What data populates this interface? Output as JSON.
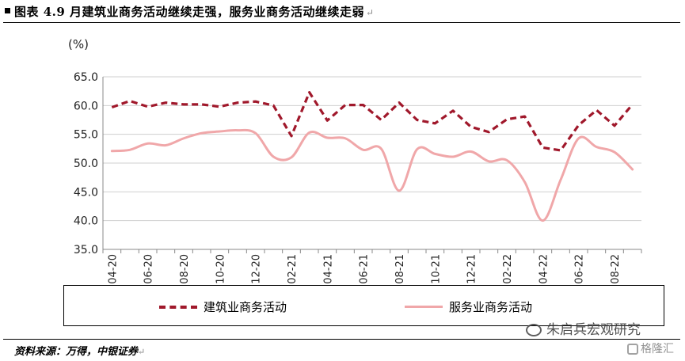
{
  "header": {
    "title": "图表 4.9 月建筑业商务活动继续走强，服务业商务活动继续走弱",
    "return_mark": "↵"
  },
  "unit": "(%)",
  "legend": {
    "construction": "建筑业商务活动",
    "services": "服务业商务活动"
  },
  "footer": {
    "source": "资料来源：万得，中银证券",
    "return_mark": "↵"
  },
  "watermarks": {
    "wechat": "朱启兵宏观研究",
    "gelonghui": "格隆汇"
  },
  "colors": {
    "construction": "#a0182b",
    "services": "#f0a7a9",
    "grid": "#cfcfcf",
    "axis": "#888888"
  },
  "icons": [
    "wechat-icon",
    "gelonghui-icon"
  ],
  "chart_data": {
    "type": "line",
    "months": [
      "04-20",
      "05-20",
      "06-20",
      "07-20",
      "08-20",
      "09-20",
      "10-20",
      "11-20",
      "12-20",
      "01-21",
      "02-21",
      "03-21",
      "04-21",
      "05-21",
      "06-21",
      "07-21",
      "08-21",
      "09-21",
      "10-21",
      "11-21",
      "12-21",
      "01-22",
      "02-22",
      "03-22",
      "04-22",
      "05-22",
      "06-22",
      "07-22",
      "08-22",
      "09-22"
    ],
    "tick_labels": [
      "04-20",
      "06-20",
      "08-20",
      "10-20",
      "12-20",
      "02-21",
      "04-21",
      "06-21",
      "08-21",
      "10-21",
      "12-21",
      "02-22",
      "04-22",
      "06-22",
      "08-22"
    ],
    "y_ticks": [
      "65.0",
      "60.0",
      "55.0",
      "50.0",
      "45.0",
      "40.0",
      "35.0"
    ],
    "ylim": [
      35,
      65
    ],
    "grid": true,
    "legend_position": "bottom",
    "series": [
      {
        "name": "建筑业商务活动",
        "style": "dashed",
        "values": [
          59.7,
          60.8,
          59.8,
          60.5,
          60.2,
          60.2,
          59.8,
          60.5,
          60.7,
          60.0,
          54.7,
          62.3,
          57.4,
          60.1,
          60.1,
          57.5,
          60.5,
          57.5,
          56.9,
          59.1,
          56.3,
          55.4,
          57.6,
          58.1,
          52.7,
          52.2,
          56.6,
          59.2,
          56.5,
          60.2
        ]
      },
      {
        "name": "服务业商务活动",
        "style": "solid",
        "values": [
          52.1,
          52.3,
          53.4,
          53.1,
          54.3,
          55.2,
          55.5,
          55.7,
          55.2,
          51.1,
          51.0,
          55.3,
          54.4,
          54.3,
          52.3,
          52.5,
          45.2,
          52.4,
          51.6,
          51.1,
          52.0,
          50.3,
          50.5,
          46.7,
          40.0,
          47.1,
          54.3,
          52.8,
          51.9,
          48.9
        ]
      }
    ]
  }
}
